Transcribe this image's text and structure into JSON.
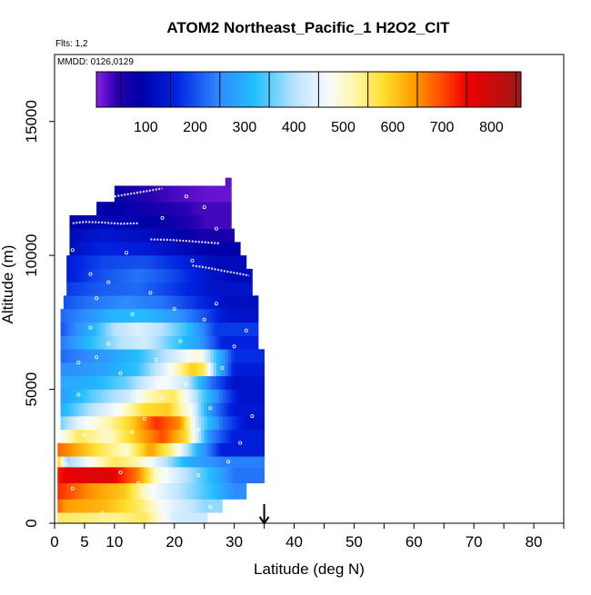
{
  "chart_data": {
    "type": "heatmap",
    "title": "ATOM2 Northeast_Pacific_1 H2O2_CIT",
    "flights_label": "Flts: 1,2",
    "dates_label": "MMDD: 0126,0129",
    "xlabel": "Latitude (deg N)",
    "ylabel": "Altitude (m)",
    "xlim": [
      0,
      85
    ],
    "ylim": [
      0,
      17500
    ],
    "x_ticks": [
      0,
      5,
      10,
      20,
      30,
      40,
      50,
      60,
      70,
      80
    ],
    "x_tick_labels": [
      "0",
      "5",
      "10",
      "20",
      "30",
      "40",
      "50",
      "60",
      "70",
      "80"
    ],
    "y_ticks": [
      0,
      5000,
      10000,
      15000
    ],
    "y_tick_labels": [
      "0",
      "5000",
      "10000",
      "15000"
    ],
    "colorbar": {
      "min": 0,
      "max": 860,
      "ticks": [
        100,
        200,
        300,
        400,
        500,
        600,
        700,
        800
      ],
      "tick_labels": [
        "100",
        "200",
        "300",
        "400",
        "500",
        "600",
        "700",
        "800"
      ],
      "stops": [
        {
          "v": 0,
          "c": "#8B1FE6"
        },
        {
          "v": 40,
          "c": "#2A00B0"
        },
        {
          "v": 90,
          "c": "#0000A8"
        },
        {
          "v": 160,
          "c": "#0022E0"
        },
        {
          "v": 250,
          "c": "#2F8CFF"
        },
        {
          "v": 320,
          "c": "#22BDFF"
        },
        {
          "v": 400,
          "c": "#B9E2FF"
        },
        {
          "v": 470,
          "c": "#F7FBFF"
        },
        {
          "v": 520,
          "c": "#FFF7B0"
        },
        {
          "v": 580,
          "c": "#FFE030"
        },
        {
          "v": 640,
          "c": "#FFA000"
        },
        {
          "v": 700,
          "c": "#FF4A00"
        },
        {
          "v": 750,
          "c": "#EE0000"
        },
        {
          "v": 860,
          "c": "#A01818"
        }
      ]
    },
    "curtain_rows": [
      {
        "y0": 0,
        "y1": 400,
        "x0": 0.5,
        "x1": 25.5,
        "cells": [
          [
            0,
            560
          ],
          [
            10,
            530
          ],
          [
            15,
            560
          ],
          [
            20,
            430
          ],
          [
            25,
            420
          ]
        ]
      },
      {
        "y0": 400,
        "y1": 900,
        "x0": 0.5,
        "x1": 28,
        "cells": [
          [
            0,
            700
          ],
          [
            2,
            640
          ],
          [
            8,
            620
          ],
          [
            14,
            560
          ],
          [
            18,
            470
          ],
          [
            22,
            420
          ],
          [
            25,
            380
          ]
        ]
      },
      {
        "y0": 900,
        "y1": 1500,
        "x0": 0.5,
        "x1": 32,
        "cells": [
          [
            0,
            730
          ],
          [
            2,
            700
          ],
          [
            6,
            650
          ],
          [
            12,
            600
          ],
          [
            16,
            480
          ],
          [
            21,
            400
          ],
          [
            26,
            330
          ],
          [
            30,
            250
          ]
        ]
      },
      {
        "y0": 1500,
        "y1": 2100,
        "x0": 0.5,
        "x1": 35,
        "cells": [
          [
            0,
            720
          ],
          [
            2,
            760
          ],
          [
            9,
            780
          ],
          [
            14,
            660
          ],
          [
            17,
            500
          ],
          [
            21,
            420
          ],
          [
            26,
            320
          ],
          [
            30,
            230
          ]
        ]
      },
      {
        "y0": 2100,
        "y1": 2500,
        "x0": 0.5,
        "x1": 35,
        "cells": [
          [
            0,
            700
          ],
          [
            2,
            380
          ],
          [
            6,
            480
          ],
          [
            10,
            560
          ],
          [
            14,
            520
          ],
          [
            18,
            420
          ],
          [
            22,
            300
          ],
          [
            28,
            240
          ]
        ]
      },
      {
        "y0": 2500,
        "y1": 3000,
        "x0": 0.5,
        "x1": 35,
        "cells": [
          [
            0,
            690
          ],
          [
            2,
            660
          ],
          [
            8,
            560
          ],
          [
            12,
            500
          ],
          [
            16,
            640
          ],
          [
            20,
            520
          ],
          [
            24,
            300
          ],
          [
            28,
            150
          ]
        ]
      },
      {
        "y0": 3000,
        "y1": 3500,
        "x0": 1,
        "x1": 35,
        "cells": [
          [
            1,
            470
          ],
          [
            4,
            560
          ],
          [
            9,
            500
          ],
          [
            14,
            620
          ],
          [
            18,
            700
          ],
          [
            22,
            580
          ],
          [
            26,
            250
          ],
          [
            30,
            150
          ]
        ]
      },
      {
        "y0": 3500,
        "y1": 4000,
        "x0": 1,
        "x1": 35,
        "cells": [
          [
            1,
            360
          ],
          [
            4,
            450
          ],
          [
            9,
            520
          ],
          [
            13,
            600
          ],
          [
            17,
            720
          ],
          [
            21,
            650
          ],
          [
            24,
            400
          ],
          [
            28,
            220
          ],
          [
            32,
            130
          ]
        ]
      },
      {
        "y0": 4000,
        "y1": 4500,
        "x0": 1,
        "x1": 35,
        "cells": [
          [
            1,
            300
          ],
          [
            6,
            400
          ],
          [
            11,
            480
          ],
          [
            15,
            580
          ],
          [
            19,
            600
          ],
          [
            23,
            460
          ],
          [
            26,
            260
          ],
          [
            30,
            140
          ]
        ]
      },
      {
        "y0": 4500,
        "y1": 5000,
        "x0": 1,
        "x1": 35,
        "cells": [
          [
            1,
            270
          ],
          [
            7,
            360
          ],
          [
            12,
            420
          ],
          [
            16,
            520
          ],
          [
            20,
            560
          ],
          [
            24,
            380
          ],
          [
            28,
            220
          ],
          [
            31,
            130
          ]
        ]
      },
      {
        "y0": 5000,
        "y1": 5500,
        "x0": 1,
        "x1": 35,
        "cells": [
          [
            1,
            290
          ],
          [
            6,
            300
          ],
          [
            12,
            360
          ],
          [
            18,
            480
          ],
          [
            22,
            420
          ],
          [
            26,
            230
          ],
          [
            30,
            130
          ]
        ]
      },
      {
        "y0": 5500,
        "y1": 6000,
        "x0": 1,
        "x1": 35,
        "cells": [
          [
            1,
            250
          ],
          [
            8,
            280
          ],
          [
            14,
            330
          ],
          [
            19,
            460
          ],
          [
            23,
            600
          ],
          [
            25,
            560
          ],
          [
            27,
            340
          ],
          [
            30,
            150
          ]
        ]
      },
      {
        "y0": 6000,
        "y1": 6500,
        "x0": 1,
        "x1": 35,
        "cells": [
          [
            1,
            220
          ],
          [
            8,
            270
          ],
          [
            14,
            320
          ],
          [
            20,
            430
          ],
          [
            24,
            500
          ],
          [
            27,
            330
          ],
          [
            30,
            170
          ]
        ]
      },
      {
        "y0": 6500,
        "y1": 7000,
        "x0": 1,
        "x1": 34,
        "cells": [
          [
            1,
            230
          ],
          [
            6,
            320
          ],
          [
            11,
            400
          ],
          [
            15,
            430
          ],
          [
            19,
            360
          ],
          [
            24,
            280
          ],
          [
            28,
            160
          ]
        ]
      },
      {
        "y0": 7000,
        "y1": 7500,
        "x0": 1,
        "x1": 34,
        "cells": [
          [
            1,
            200
          ],
          [
            6,
            300
          ],
          [
            10,
            400
          ],
          [
            14,
            440
          ],
          [
            18,
            400
          ],
          [
            22,
            330
          ],
          [
            27,
            180
          ]
        ]
      },
      {
        "y0": 7500,
        "y1": 8000,
        "x0": 1,
        "x1": 34,
        "cells": [
          [
            1,
            220
          ],
          [
            5,
            250
          ],
          [
            10,
            310
          ],
          [
            15,
            320
          ],
          [
            20,
            270
          ],
          [
            25,
            200
          ],
          [
            29,
            130
          ]
        ]
      },
      {
        "y0": 8000,
        "y1": 8500,
        "x0": 1.5,
        "x1": 34,
        "cells": [
          [
            1.5,
            200
          ],
          [
            6,
            230
          ],
          [
            12,
            250
          ],
          [
            18,
            230
          ],
          [
            24,
            170
          ],
          [
            29,
            120
          ]
        ]
      },
      {
        "y0": 8500,
        "y1": 9000,
        "x0": 2,
        "x1": 33,
        "cells": [
          [
            2,
            180
          ],
          [
            8,
            210
          ],
          [
            14,
            220
          ],
          [
            20,
            180
          ],
          [
            26,
            130
          ]
        ]
      },
      {
        "y0": 9000,
        "y1": 9500,
        "x0": 2,
        "x1": 33,
        "cells": [
          [
            2,
            150
          ],
          [
            8,
            200
          ],
          [
            14,
            230
          ],
          [
            19,
            200
          ],
          [
            24,
            150
          ],
          [
            29,
            110
          ]
        ]
      },
      {
        "y0": 9500,
        "y1": 10000,
        "x0": 2,
        "x1": 32,
        "cells": [
          [
            2,
            150
          ],
          [
            8,
            190
          ],
          [
            15,
            200
          ],
          [
            21,
            160
          ],
          [
            27,
            110
          ]
        ]
      },
      {
        "y0": 10000,
        "y1": 10500,
        "x0": 2.5,
        "x1": 31,
        "cells": [
          [
            2.5,
            120
          ],
          [
            8,
            160
          ],
          [
            14,
            150
          ],
          [
            20,
            120
          ],
          [
            26,
            90
          ]
        ]
      },
      {
        "y0": 10500,
        "y1": 11000,
        "x0": 2.5,
        "x1": 30,
        "cells": [
          [
            2.5,
            110
          ],
          [
            8,
            140
          ],
          [
            14,
            120
          ],
          [
            20,
            100
          ],
          [
            25,
            60
          ]
        ]
      },
      {
        "y0": 11000,
        "y1": 11500,
        "x0": 2.5,
        "x1": 29.5,
        "cells": [
          [
            2.5,
            90
          ],
          [
            8,
            110
          ],
          [
            14,
            100
          ],
          [
            20,
            70
          ],
          [
            25,
            30
          ]
        ]
      },
      {
        "y0": 11500,
        "y1": 12000,
        "x0": 7,
        "x1": 29.5,
        "cells": [
          [
            7,
            100
          ],
          [
            12,
            80
          ],
          [
            18,
            60
          ],
          [
            24,
            30
          ]
        ]
      },
      {
        "y0": 12000,
        "y1": 12600,
        "x0": 10,
        "x1": 29.5,
        "cells": [
          [
            10,
            90
          ],
          [
            16,
            40
          ],
          [
            21,
            25
          ],
          [
            26,
            15
          ]
        ]
      },
      {
        "y0": 12600,
        "y1": 12900,
        "x0": 28.5,
        "x1": 29.5,
        "cells": [
          [
            28.5,
            20
          ]
        ]
      }
    ],
    "flight_tracks": [
      {
        "points": [
          [
            3,
            11200
          ],
          [
            5,
            11250
          ],
          [
            8,
            11230
          ],
          [
            11,
            11180
          ],
          [
            14,
            11200
          ]
        ]
      },
      {
        "points": [
          [
            16,
            10600
          ],
          [
            19,
            10580
          ],
          [
            22,
            10540
          ],
          [
            25,
            10490
          ],
          [
            27.5,
            10450
          ]
        ]
      },
      {
        "points": [
          [
            23,
            9620
          ],
          [
            26,
            9520
          ],
          [
            28,
            9430
          ],
          [
            30,
            9350
          ],
          [
            32.5,
            9250
          ]
        ]
      },
      {
        "points": [
          [
            10,
            12200
          ],
          [
            14,
            12350
          ],
          [
            18,
            12500
          ]
        ]
      }
    ],
    "sample_points": [
      [
        2,
        2200
      ],
      [
        3,
        1300
      ],
      [
        4,
        4800
      ],
      [
        5,
        3300
      ],
      [
        6,
        7300
      ],
      [
        7,
        6200
      ],
      [
        8,
        400
      ],
      [
        9,
        9000
      ],
      [
        10,
        4100
      ],
      [
        11,
        5600
      ],
      [
        12,
        2600
      ],
      [
        13,
        7800
      ],
      [
        14,
        1500
      ],
      [
        15,
        3900
      ],
      [
        16,
        8600
      ],
      [
        17,
        6100
      ],
      [
        18,
        4700
      ],
      [
        19,
        300
      ],
      [
        20,
        2900
      ],
      [
        21,
        6800
      ],
      [
        22,
        5200
      ],
      [
        23,
        9800
      ],
      [
        24,
        3500
      ],
      [
        25,
        7600
      ],
      [
        26,
        4300
      ],
      [
        27,
        8200
      ],
      [
        28,
        5800
      ],
      [
        29,
        2300
      ],
      [
        30,
        6600
      ],
      [
        31,
        3000
      ],
      [
        32,
        7200
      ],
      [
        33,
        4000
      ],
      [
        3,
        10200
      ],
      [
        6,
        9300
      ],
      [
        12,
        10100
      ],
      [
        18,
        11400
      ],
      [
        22,
        12200
      ],
      [
        25,
        11800
      ],
      [
        27,
        11000
      ],
      [
        9,
        6700
      ],
      [
        13,
        3400
      ],
      [
        16,
        5000
      ],
      [
        4,
        6000
      ],
      [
        7,
        8400
      ],
      [
        20,
        8000
      ],
      [
        24,
        1800
      ],
      [
        26,
        600
      ],
      [
        11,
        1900
      ]
    ],
    "arrow_marker": {
      "x": 35,
      "label": ""
    }
  }
}
